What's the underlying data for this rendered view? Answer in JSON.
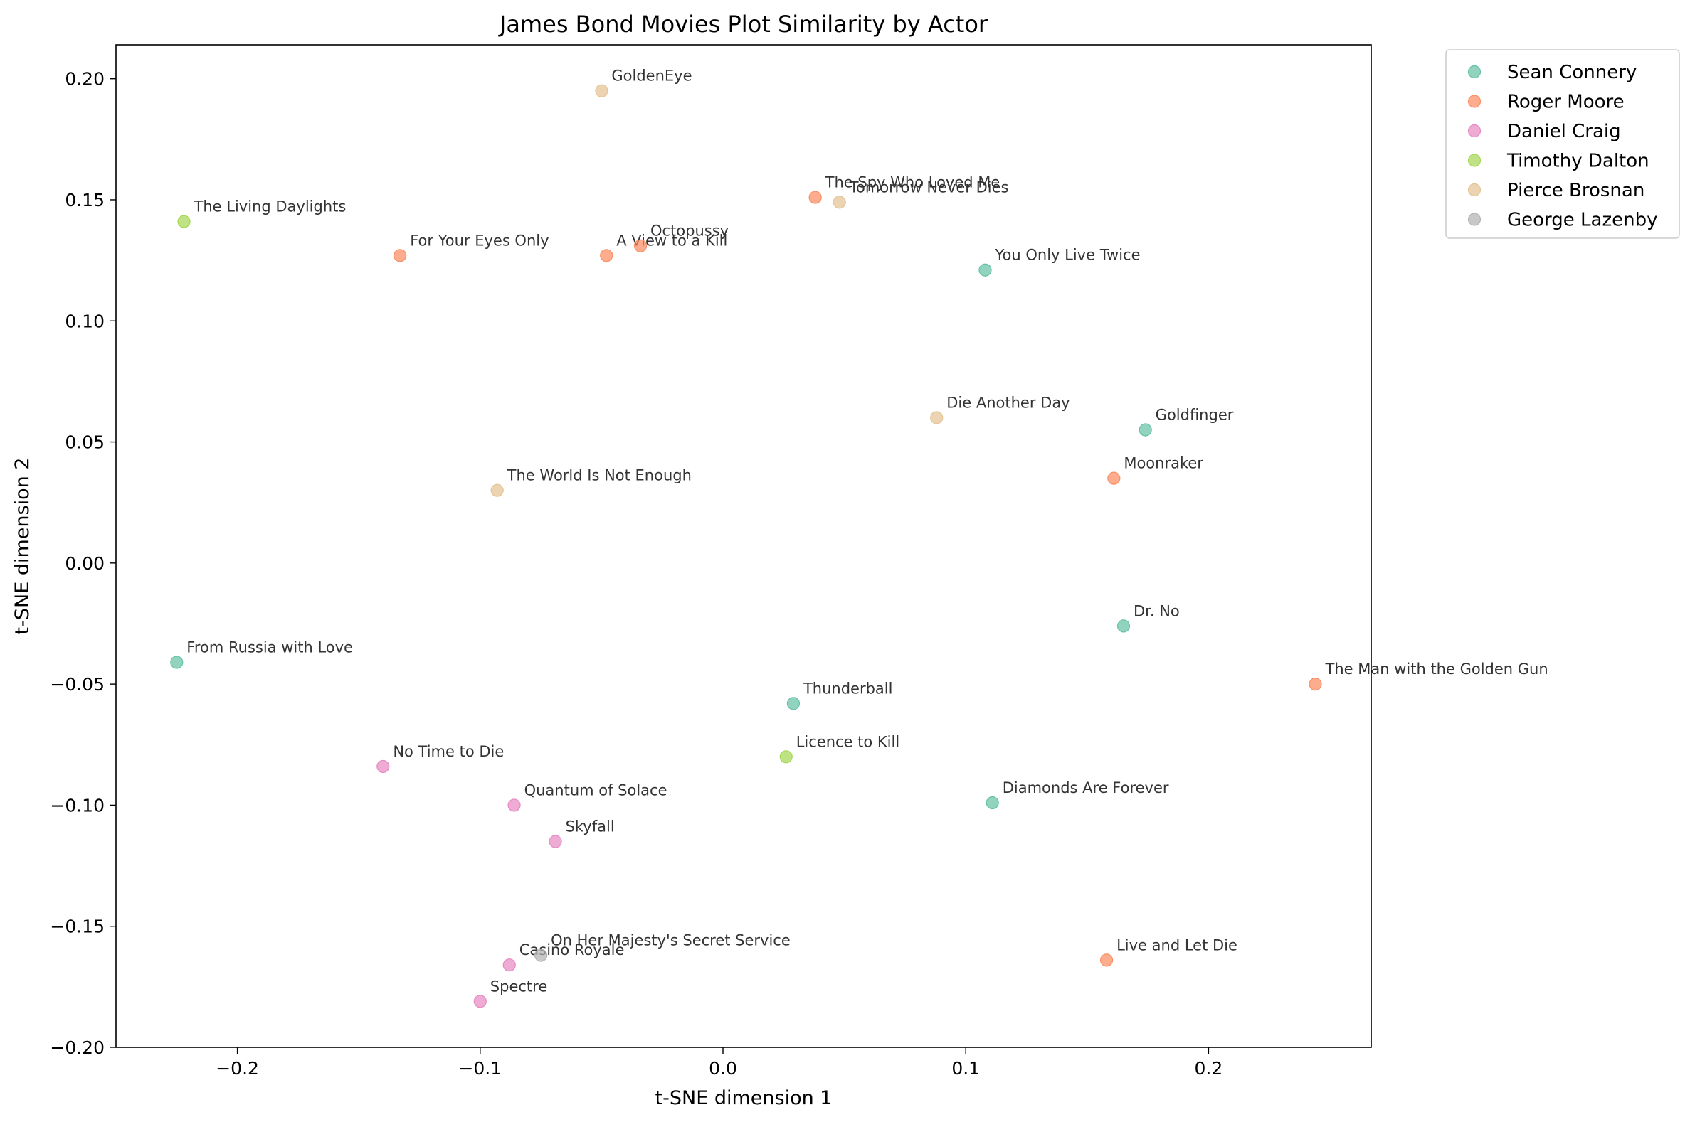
{
  "chart_data": {
    "type": "scatter",
    "title": "James Bond Movies Plot Similarity by Actor",
    "xlabel": "t-SNE dimension 1",
    "ylabel": "t-SNE dimension 2",
    "xlim": [
      -0.25,
      0.267
    ],
    "ylim": [
      -0.2,
      0.214
    ],
    "xticks": [
      -0.2,
      -0.1,
      0.0,
      0.1,
      0.2
    ],
    "xtick_labels": [
      "−0.2",
      "−0.1",
      "0.0",
      "0.1",
      "0.2"
    ],
    "yticks": [
      0.2,
      0.15,
      0.1,
      0.05,
      0.0,
      -0.05,
      -0.1,
      -0.15,
      -0.2
    ],
    "ytick_labels": [
      "0.20",
      "0.15",
      "0.10",
      "0.05",
      "0.00",
      "−0.05",
      "−0.10",
      "−0.15",
      "−0.20"
    ],
    "grid": false,
    "legend_position": "outside-top-right",
    "series": [
      {
        "name": "Sean Connery",
        "color": "#66c2a5",
        "points": [
          {
            "label": "You Only Live Twice",
            "x": 0.108,
            "y": 0.121
          },
          {
            "label": "Goldfinger",
            "x": 0.174,
            "y": 0.055
          },
          {
            "label": "Dr. No",
            "x": 0.165,
            "y": -0.026
          },
          {
            "label": "From Russia with Love",
            "x": -0.225,
            "y": -0.041
          },
          {
            "label": "Thunderball",
            "x": 0.029,
            "y": -0.058
          },
          {
            "label": "Diamonds Are Forever",
            "x": 0.111,
            "y": -0.099
          }
        ]
      },
      {
        "name": "Roger Moore",
        "color": "#fc8d62",
        "points": [
          {
            "label": "The Spy Who Loved Me",
            "x": 0.038,
            "y": 0.151
          },
          {
            "label": "For Your Eyes Only",
            "x": -0.133,
            "y": 0.127
          },
          {
            "label": "A View to a Kill",
            "x": -0.048,
            "y": 0.127
          },
          {
            "label": "Octopussy",
            "x": -0.034,
            "y": 0.131
          },
          {
            "label": "Moonraker",
            "x": 0.161,
            "y": 0.035
          },
          {
            "label": "The Man with the Golden Gun",
            "x": 0.244,
            "y": -0.05
          },
          {
            "label": "Live and Let Die",
            "x": 0.158,
            "y": -0.164
          }
        ]
      },
      {
        "name": "Daniel Craig",
        "color": "#e78ac3",
        "points": [
          {
            "label": "No Time to Die",
            "x": -0.14,
            "y": -0.084
          },
          {
            "label": "Quantum of Solace",
            "x": -0.086,
            "y": -0.1
          },
          {
            "label": "Skyfall",
            "x": -0.069,
            "y": -0.115
          },
          {
            "label": "Casino Royale",
            "x": -0.088,
            "y": -0.166
          },
          {
            "label": "Spectre",
            "x": -0.1,
            "y": -0.181
          }
        ]
      },
      {
        "name": "Timothy Dalton",
        "color": "#a6d854",
        "points": [
          {
            "label": "The Living Daylights",
            "x": -0.222,
            "y": 0.141
          },
          {
            "label": "Licence to Kill",
            "x": 0.026,
            "y": -0.08
          }
        ]
      },
      {
        "name": "Pierce Brosnan",
        "color": "#e5c494",
        "points": [
          {
            "label": "GoldenEye",
            "x": -0.05,
            "y": 0.195
          },
          {
            "label": "Tomorrow Never Dies",
            "x": 0.048,
            "y": 0.149
          },
          {
            "label": "Die Another Day",
            "x": 0.088,
            "y": 0.06
          },
          {
            "label": "The World Is Not Enough",
            "x": -0.093,
            "y": 0.03
          }
        ]
      },
      {
        "name": "George Lazenby",
        "color": "#b3b3b3",
        "points": [
          {
            "label": "On Her Majesty's Secret Service",
            "x": -0.075,
            "y": -0.162
          }
        ]
      }
    ]
  }
}
